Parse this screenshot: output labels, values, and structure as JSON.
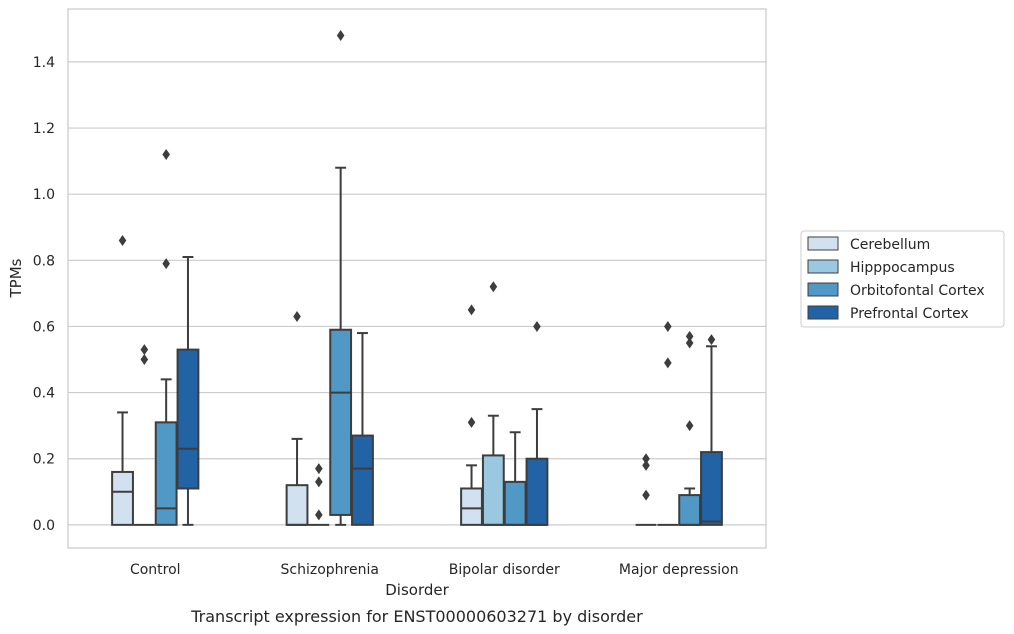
{
  "chart_data": {
    "type": "box",
    "title": "",
    "caption": "Transcript expression for ENST00000603271 by disorder",
    "xlabel": "Disorder",
    "ylabel": "TPMs",
    "ylim": [
      -0.07,
      1.56
    ],
    "yticks": [
      "0.0",
      "0.2",
      "0.4",
      "0.6",
      "0.8",
      "1.0",
      "1.2",
      "1.4"
    ],
    "ytick_values": [
      0.0,
      0.2,
      0.4,
      0.6,
      0.8,
      1.0,
      1.2,
      1.4
    ],
    "grid": "horizontal",
    "legend_position": "right",
    "categories": [
      "Control",
      "Schizophrenia",
      "Bipolar disorder",
      "Major depression"
    ],
    "series": [
      {
        "name": "Cerebellum",
        "color": "#d2e1f0",
        "boxes": [
          {
            "category": "Control",
            "whisker_low": 0.0,
            "q1": 0.0,
            "median": 0.1,
            "q3": 0.16,
            "whisker_high": 0.34,
            "outliers": [
              0.86
            ]
          },
          {
            "category": "Schizophrenia",
            "whisker_low": 0.0,
            "q1": 0.0,
            "median": 0.0,
            "q3": 0.12,
            "whisker_high": 0.26,
            "outliers": [
              0.63
            ]
          },
          {
            "category": "Bipolar disorder",
            "whisker_low": 0.0,
            "q1": 0.0,
            "median": 0.05,
            "q3": 0.11,
            "whisker_high": 0.18,
            "outliers": [
              0.31,
              0.65
            ]
          },
          {
            "category": "Major depression",
            "whisker_low": 0.0,
            "q1": 0.0,
            "median": 0.0,
            "q3": 0.0,
            "whisker_high": 0.0,
            "outliers": [
              0.09,
              0.18,
              0.2
            ]
          }
        ]
      },
      {
        "name": "Hipppocampus",
        "color": "#9ac8e0",
        "boxes": [
          {
            "category": "Control",
            "whisker_low": 0.0,
            "q1": 0.0,
            "median": 0.0,
            "q3": 0.0,
            "whisker_high": 0.0,
            "outliers": [
              0.5,
              0.53
            ]
          },
          {
            "category": "Schizophrenia",
            "whisker_low": 0.0,
            "q1": 0.0,
            "median": 0.0,
            "q3": 0.0,
            "whisker_high": 0.0,
            "outliers": [
              0.03,
              0.13,
              0.17
            ]
          },
          {
            "category": "Bipolar disorder",
            "whisker_low": 0.0,
            "q1": 0.0,
            "median": 0.0,
            "q3": 0.21,
            "whisker_high": 0.33,
            "outliers": [
              0.72
            ]
          },
          {
            "category": "Major depression",
            "whisker_low": 0.0,
            "q1": 0.0,
            "median": 0.0,
            "q3": 0.0,
            "whisker_high": 0.0,
            "outliers": [
              0.49,
              0.6
            ]
          }
        ]
      },
      {
        "name": "Orbitofontal Cortex",
        "color": "#5098c6",
        "boxes": [
          {
            "category": "Control",
            "whisker_low": 0.0,
            "q1": 0.0,
            "median": 0.05,
            "q3": 0.31,
            "whisker_high": 0.44,
            "outliers": [
              0.79,
              1.12
            ]
          },
          {
            "category": "Schizophrenia",
            "whisker_low": 0.0,
            "q1": 0.03,
            "median": 0.4,
            "q3": 0.59,
            "whisker_high": 1.08,
            "outliers": [
              1.48
            ]
          },
          {
            "category": "Bipolar disorder",
            "whisker_low": 0.0,
            "q1": 0.0,
            "median": 0.0,
            "q3": 0.13,
            "whisker_high": 0.28,
            "outliers": []
          },
          {
            "category": "Major depression",
            "whisker_low": 0.0,
            "q1": 0.0,
            "median": 0.0,
            "q3": 0.09,
            "whisker_high": 0.11,
            "outliers": [
              0.3,
              0.55,
              0.57
            ]
          }
        ]
      },
      {
        "name": "Prefrontal Cortex",
        "color": "#2263a6",
        "boxes": [
          {
            "category": "Control",
            "whisker_low": 0.0,
            "q1": 0.11,
            "median": 0.23,
            "q3": 0.53,
            "whisker_high": 0.81,
            "outliers": []
          },
          {
            "category": "Schizophrenia",
            "whisker_low": 0.0,
            "q1": 0.0,
            "median": 0.17,
            "q3": 0.27,
            "whisker_high": 0.58,
            "outliers": []
          },
          {
            "category": "Bipolar disorder",
            "whisker_low": 0.0,
            "q1": 0.0,
            "median": 0.0,
            "q3": 0.2,
            "whisker_high": 0.35,
            "outliers": [
              0.6
            ]
          },
          {
            "category": "Major depression",
            "whisker_low": 0.0,
            "q1": 0.0,
            "median": 0.01,
            "q3": 0.22,
            "whisker_high": 0.54,
            "outliers": [
              0.56
            ]
          }
        ]
      }
    ]
  }
}
